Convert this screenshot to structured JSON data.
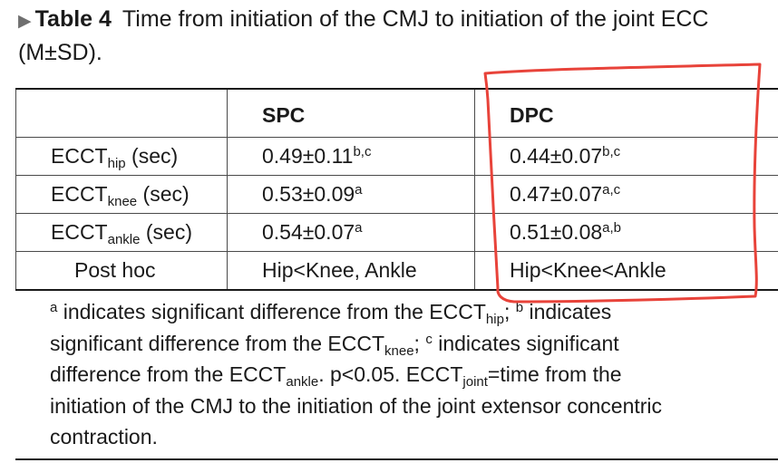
{
  "caption": {
    "marker": "▶",
    "label": "Table 4",
    "text_line1": "Time from initiation of the CMJ to initiation of the joint ECC",
    "text_line2": "(M±SD)."
  },
  "table": {
    "headers": [
      "",
      "SPC",
      "DPC"
    ],
    "rows": [
      {
        "label_main": "ECCT",
        "label_sub": "hip",
        "label_unit": " (sec)",
        "spc_value": "0.49±0.11",
        "spc_sup": "b,c",
        "dpc_value": "0.44±0.07",
        "dpc_sup": "b,c"
      },
      {
        "label_main": "ECCT",
        "label_sub": "knee",
        "label_unit": " (sec)",
        "spc_value": "0.53±0.09",
        "spc_sup": "a",
        "dpc_value": "0.47±0.07",
        "dpc_sup": "a,c"
      },
      {
        "label_main": "ECCT",
        "label_sub": "ankle",
        "label_unit": " (sec)",
        "spc_value": "0.54±0.07",
        "spc_sup": "a",
        "dpc_value": "0.51±0.08",
        "dpc_sup": "a,b"
      }
    ],
    "posthoc": {
      "label": "Post hoc",
      "spc": "Hip<Knee, Ankle",
      "dpc": "Hip<Knee<Ankle"
    }
  },
  "footnote": {
    "a_sup": "a",
    "a_text_1": " indicates significant difference from the ECCT",
    "a_sub": "hip",
    "sep_1": "; ",
    "b_sup": "b",
    "b_text_1": " indicates",
    "b_text_2": "significant difference from the ECCT",
    "b_sub": "knee",
    "sep_2": "; ",
    "c_sup": "c",
    "c_text_1": " indicates significant",
    "c_text_2": "difference from the ECCT",
    "c_sub": "ankle",
    "p_text": ". p<0.05. ECCT",
    "joint_sub": "joint",
    "def_text_1": "=time from the",
    "def_text_2": "initiation of the CMJ to the initiation of the joint extensor concentric",
    "def_text_3": "contraction."
  },
  "annotation": {
    "mark_color": "#e8433a",
    "mark_kind": "hand-drawn outline around DPC column"
  }
}
